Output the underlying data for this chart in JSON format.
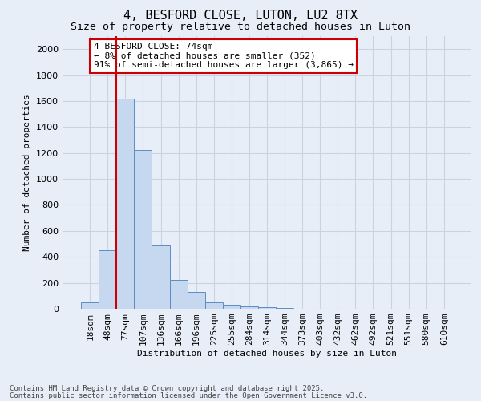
{
  "title": "4, BESFORD CLOSE, LUTON, LU2 8TX",
  "subtitle": "Size of property relative to detached houses in Luton",
  "xlabel": "Distribution of detached houses by size in Luton",
  "ylabel": "Number of detached properties",
  "categories": [
    "18sqm",
    "48sqm",
    "77sqm",
    "107sqm",
    "136sqm",
    "166sqm",
    "196sqm",
    "225sqm",
    "255sqm",
    "284sqm",
    "314sqm",
    "344sqm",
    "373sqm",
    "403sqm",
    "432sqm",
    "462sqm",
    "492sqm",
    "521sqm",
    "551sqm",
    "580sqm",
    "610sqm"
  ],
  "values": [
    50,
    450,
    1620,
    1220,
    490,
    220,
    130,
    50,
    30,
    20,
    10,
    5,
    3,
    2,
    1,
    1,
    0,
    0,
    0,
    0,
    0
  ],
  "bar_color": "#c5d8f0",
  "bar_edge_color": "#5b8dc4",
  "grid_color": "#c8d4e4",
  "background_color": "#e8eef8",
  "vline_bar_index": 2,
  "vline_color": "#cc0000",
  "annotation_line1": "4 BESFORD CLOSE: 74sqm",
  "annotation_line2": "← 8% of detached houses are smaller (352)",
  "annotation_line3": "91% of semi-detached houses are larger (3,865) →",
  "annotation_box_color": "#ffffff",
  "annotation_box_edge": "#cc0000",
  "footer1": "Contains HM Land Registry data © Crown copyright and database right 2025.",
  "footer2": "Contains public sector information licensed under the Open Government Licence v3.0.",
  "ylim": [
    0,
    2100
  ],
  "yticks": [
    0,
    200,
    400,
    600,
    800,
    1000,
    1200,
    1400,
    1600,
    1800,
    2000
  ],
  "title_fontsize": 11,
  "subtitle_fontsize": 9.5,
  "label_fontsize": 8,
  "tick_fontsize": 8,
  "annot_fontsize": 8,
  "footer_fontsize": 6.5
}
